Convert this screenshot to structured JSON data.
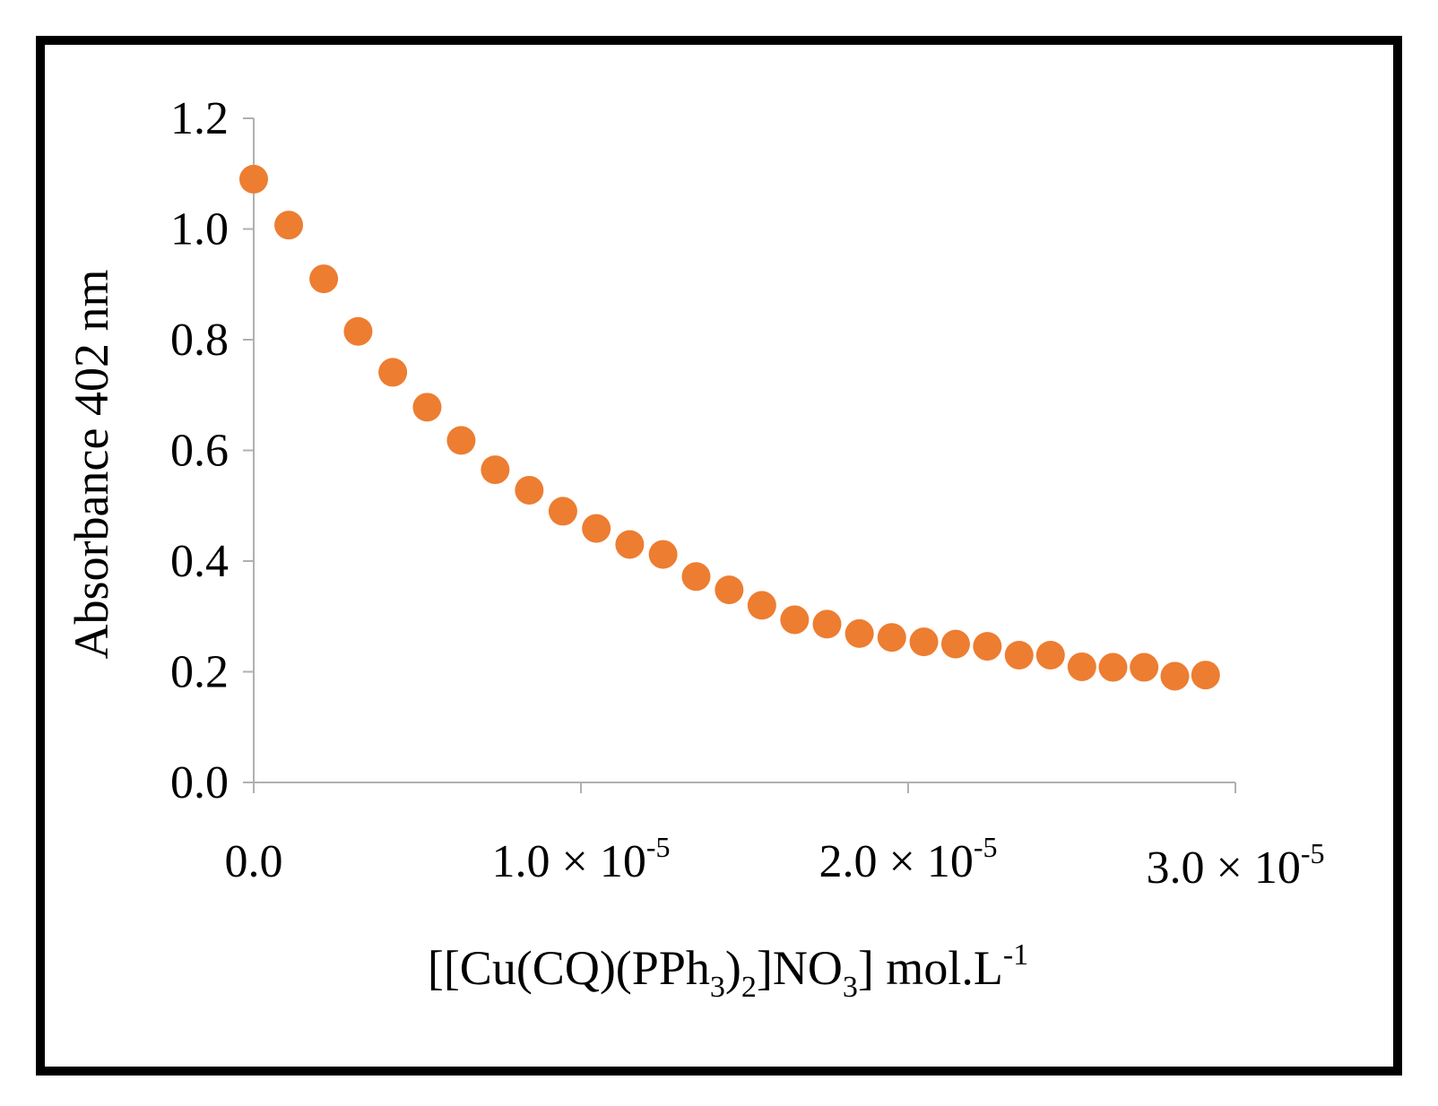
{
  "chart_data": {
    "type": "scatter",
    "title": "",
    "ylabel": "Absorbance 402 nm",
    "xlabel": {
      "parts": [
        {
          "text": "[[Cu(CQ)(PPh",
          "shift": "none"
        },
        {
          "text": "3",
          "shift": "sub"
        },
        {
          "text": ")",
          "shift": "none"
        },
        {
          "text": "2",
          "shift": "sub"
        },
        {
          "text": "]NO",
          "shift": "none"
        },
        {
          "text": "3",
          "shift": "sub"
        },
        {
          "text": "] mol.L",
          "shift": "none"
        },
        {
          "text": "-1",
          "shift": "super"
        }
      ]
    },
    "xlim": [
      0,
      3e-05
    ],
    "ylim": [
      0,
      1.2
    ],
    "grid": false,
    "legend": "none",
    "marker_color": "#ED7D31",
    "axis_color": "#B0B0B0",
    "y_ticks": [
      {
        "value": 0.0,
        "label": "0.0"
      },
      {
        "value": 0.2,
        "label": "0.2"
      },
      {
        "value": 0.4,
        "label": "0.4"
      },
      {
        "value": 0.6,
        "label": "0.6"
      },
      {
        "value": 0.8,
        "label": "0.8"
      },
      {
        "value": 1.0,
        "label": "1.0"
      },
      {
        "value": 1.2,
        "label": "1.2"
      }
    ],
    "x_ticks": [
      {
        "value": 0,
        "mantissa": "0.0",
        "exponent": ""
      },
      {
        "value": 1e-05,
        "mantissa": "1.0 × 10",
        "exponent": "-5"
      },
      {
        "value": 2e-05,
        "mantissa": "2.0 × 10",
        "exponent": "-5"
      },
      {
        "value": 3e-05,
        "mantissa": "3.0 × 10",
        "exponent": "-5"
      }
    ],
    "series": [
      {
        "name": "Absorbance",
        "x": [
          0.0,
          1.07e-06,
          2.14e-06,
          3.19e-06,
          4.25e-06,
          5.3e-06,
          6.34e-06,
          7.38e-06,
          8.42e-06,
          9.45e-06,
          1.047e-05,
          1.149e-05,
          1.251e-05,
          1.352e-05,
          1.453e-05,
          1.553e-05,
          1.653e-05,
          1.752e-05,
          1.851e-05,
          1.95e-05,
          2.048e-05,
          2.145e-05,
          2.242e-05,
          2.339e-05,
          2.435e-05,
          2.531e-05,
          2.626e-05,
          2.721e-05,
          2.815e-05,
          2.909e-05
        ],
        "y": [
          1.09,
          1.007,
          0.91,
          0.815,
          0.741,
          0.678,
          0.618,
          0.565,
          0.528,
          0.49,
          0.459,
          0.43,
          0.412,
          0.372,
          0.348,
          0.32,
          0.294,
          0.286,
          0.269,
          0.262,
          0.254,
          0.25,
          0.246,
          0.23,
          0.23,
          0.209,
          0.208,
          0.208,
          0.192,
          0.194
        ]
      }
    ]
  }
}
